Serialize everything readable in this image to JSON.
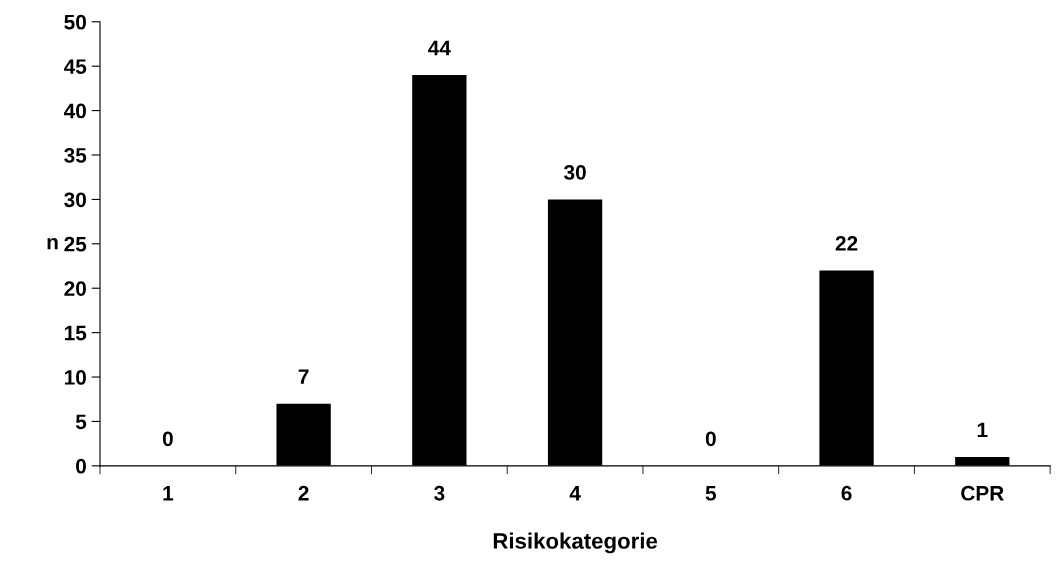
{
  "chart_data": {
    "type": "bar",
    "xlabel": "Risikokategorie",
    "ylabel": "n",
    "categories": [
      "1",
      "2",
      "3",
      "4",
      "5",
      "6",
      "CPR"
    ],
    "values": [
      0,
      7,
      44,
      30,
      0,
      22,
      1
    ],
    "color": "#000000",
    "ylim": [
      0,
      50
    ],
    "yticks": [
      0,
      5,
      10,
      15,
      20,
      25,
      30,
      35,
      40,
      45,
      50
    ],
    "data_labels": true,
    "grid": false,
    "legend": false
  }
}
